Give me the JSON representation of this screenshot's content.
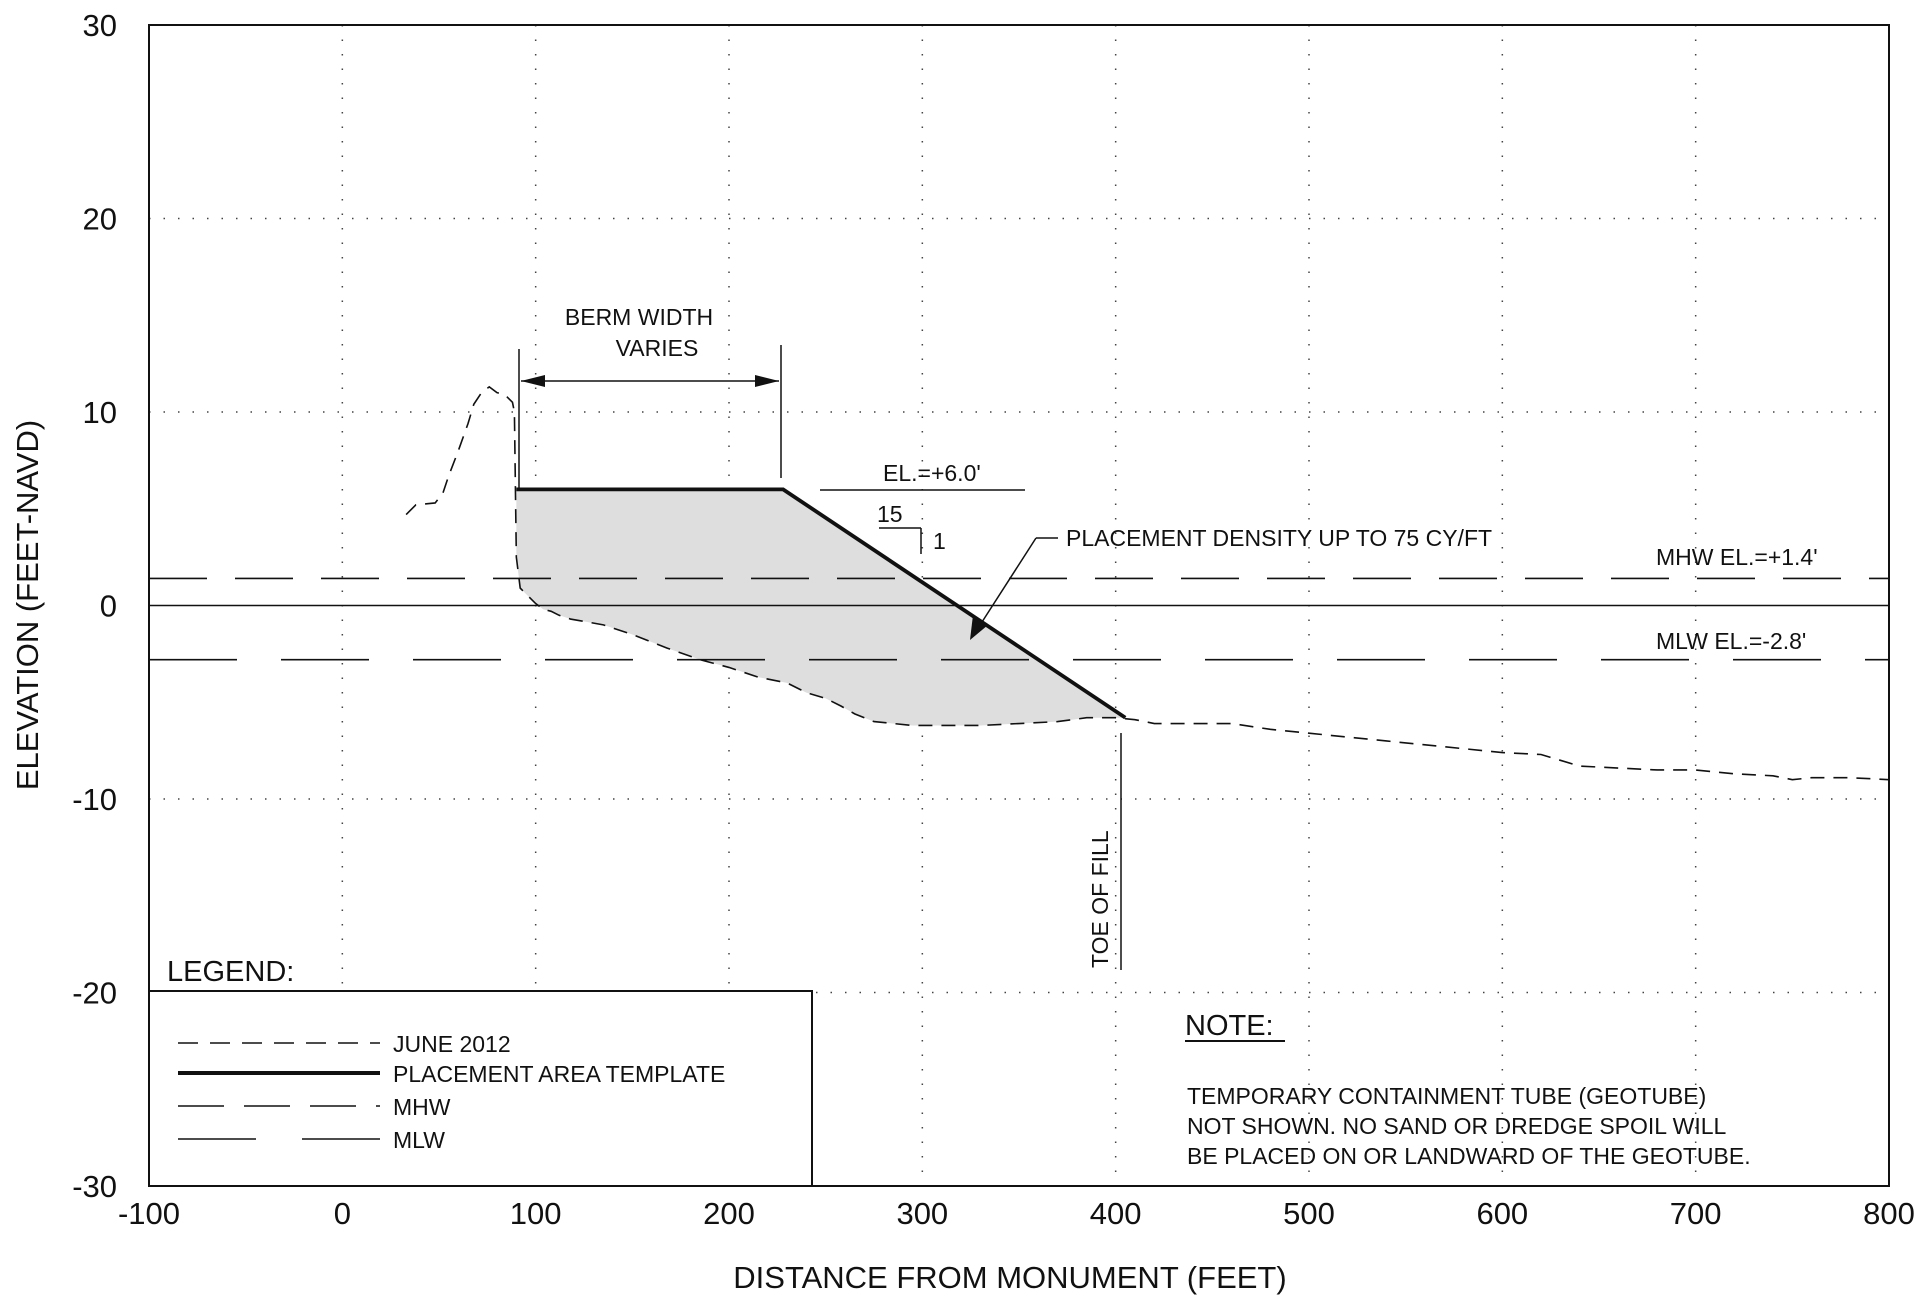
{
  "chart_data": {
    "type": "line",
    "xlabel": "DISTANCE FROM MONUMENT (FEET)",
    "ylabel": "ELEVATION (FEET-NAVD)",
    "xlim": [
      -100,
      800
    ],
    "ylim": [
      -30,
      30
    ],
    "x_ticks": [
      -100,
      0,
      100,
      200,
      300,
      400,
      500,
      600,
      700,
      800
    ],
    "y_ticks": [
      30,
      20,
      10,
      0,
      -10,
      -20,
      -30
    ],
    "grid": "dotted",
    "series": [
      {
        "name": "JUNE 2012",
        "style": "short-dash",
        "x": [
          33,
          38,
          48,
          52,
          55,
          60,
          65,
          68,
          72,
          76,
          80,
          84,
          88,
          89,
          90,
          92,
          96,
          100,
          104,
          108,
          112,
          118,
          135,
          150,
          168,
          185,
          200,
          215,
          230,
          240,
          250,
          258,
          265,
          275,
          295,
          315,
          330,
          350,
          370,
          385,
          400,
          410,
          420,
          440,
          460,
          480,
          500,
          520,
          540,
          560,
          580,
          600,
          620,
          640,
          660,
          680,
          700,
          720,
          740,
          750,
          760,
          780,
          800
        ],
        "y": [
          4.7,
          5.2,
          5.3,
          5.8,
          6.7,
          8.0,
          9.4,
          10.4,
          11.0,
          11.3,
          11.0,
          10.9,
          10.5,
          10.0,
          2.5,
          0.9,
          0.5,
          0.1,
          -0.2,
          -0.3,
          -0.5,
          -0.7,
          -1.0,
          -1.5,
          -2.2,
          -2.8,
          -3.2,
          -3.7,
          -4.0,
          -4.5,
          -4.8,
          -5.2,
          -5.6,
          -6.0,
          -6.2,
          -6.2,
          -6.2,
          -6.1,
          -6.0,
          -5.8,
          -5.8,
          -5.9,
          -6.1,
          -6.1,
          -6.1,
          -6.4,
          -6.6,
          -6.8,
          -7.0,
          -7.2,
          -7.4,
          -7.6,
          -7.7,
          -8.3,
          -8.4,
          -8.5,
          -8.5,
          -8.7,
          -8.8,
          -9.0,
          -8.9,
          -8.9,
          -9.0
        ]
      },
      {
        "name": "PLACEMENT AREA TEMPLATE",
        "style": "bold-solid",
        "x": [
          90,
          228,
          405
        ],
        "y": [
          6.0,
          6.0,
          -5.8
        ]
      },
      {
        "name": "MHW",
        "style": "long-dash",
        "y_constant": 1.4
      },
      {
        "name": "MLW",
        "style": "long-dash-wide-gap",
        "y_constant": -2.8
      }
    ],
    "zero_line": 0,
    "placement_area_fill": "#dedede",
    "annotations": {
      "berm_width_line1": "BERM WIDTH",
      "berm_width_line2": "VARIES",
      "elevation": "EL.=+6.0'",
      "slope_run": "15",
      "slope_rise": "1",
      "density": "PLACEMENT DENSITY UP TO 75 CY/FT",
      "mhw_label": "MHW EL.=+1.4'",
      "mlw_label": "MLW EL.=-2.8'",
      "toe": "TOE OF FILL"
    },
    "legend": {
      "title": "LEGEND:",
      "placement": "bottom-left",
      "items": [
        "JUNE 2012",
        "PLACEMENT AREA TEMPLATE",
        "MHW",
        "MLW"
      ]
    },
    "note": {
      "title": "NOTE:",
      "lines": [
        "TEMPORARY CONTAINMENT TUBE (GEOTUBE)",
        "NOT SHOWN.  NO SAND OR DREDGE SPOIL WILL",
        "BE PLACED ON OR LANDWARD OF THE GEOTUBE."
      ]
    },
    "colors": {
      "ink": "#111111",
      "fill": "#dedede",
      "grid": "#444444"
    }
  }
}
